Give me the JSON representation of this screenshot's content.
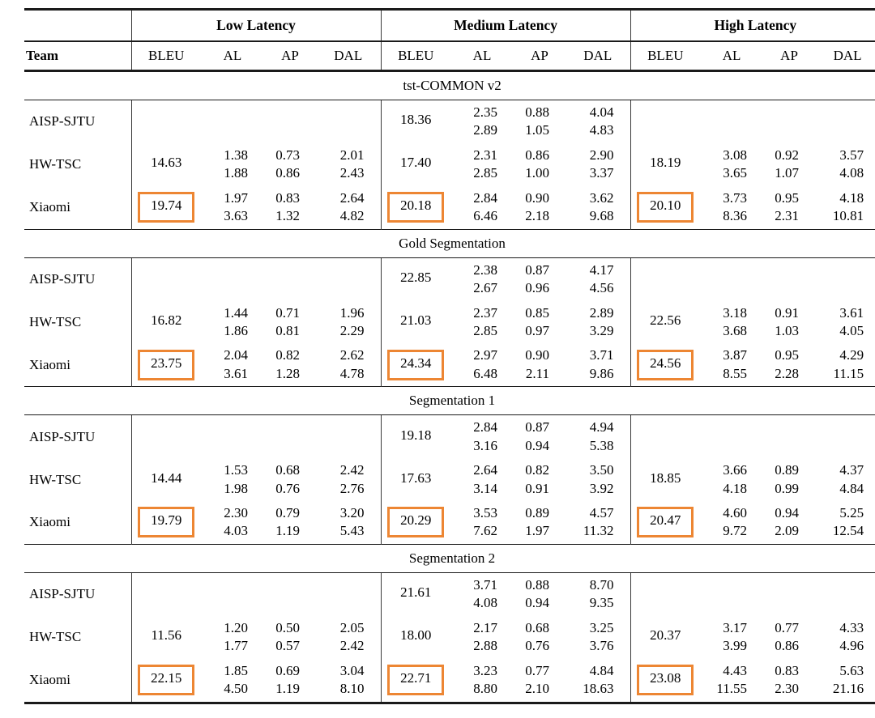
{
  "table": {
    "latency_groups": [
      {
        "label": "Low Latency"
      },
      {
        "label": "Medium Latency"
      },
      {
        "label": "High Latency"
      }
    ],
    "columns": {
      "team": "Team",
      "per_group": [
        "BLEU",
        "AL",
        "AP",
        "DAL"
      ]
    },
    "highlight_color": "#ED8633",
    "sections": [
      {
        "title": "tst-COMMON v2",
        "rows": [
          {
            "team": "AISP-SJTU",
            "low": {
              "bleu": "",
              "boxed": false,
              "al": [
                "",
                ""
              ],
              "ap": [
                "",
                ""
              ],
              "dal": [
                "",
                ""
              ]
            },
            "medium": {
              "bleu": "18.36",
              "boxed": false,
              "al": [
                "2.35",
                "2.89"
              ],
              "ap": [
                "0.88",
                "1.05"
              ],
              "dal": [
                "4.04",
                "4.83"
              ]
            },
            "high": {
              "bleu": "",
              "boxed": false,
              "al": [
                "",
                ""
              ],
              "ap": [
                "",
                ""
              ],
              "dal": [
                "",
                ""
              ]
            }
          },
          {
            "team": "HW-TSC",
            "low": {
              "bleu": "14.63",
              "boxed": false,
              "al": [
                "1.38",
                "1.88"
              ],
              "ap": [
                "0.73",
                "0.86"
              ],
              "dal": [
                "2.01",
                "2.43"
              ]
            },
            "medium": {
              "bleu": "17.40",
              "boxed": false,
              "al": [
                "2.31",
                "2.85"
              ],
              "ap": [
                "0.86",
                "1.00"
              ],
              "dal": [
                "2.90",
                "3.37"
              ]
            },
            "high": {
              "bleu": "18.19",
              "boxed": false,
              "al": [
                "3.08",
                "3.65"
              ],
              "ap": [
                "0.92",
                "1.07"
              ],
              "dal": [
                "3.57",
                "4.08"
              ]
            }
          },
          {
            "team": "Xiaomi",
            "low": {
              "bleu": "19.74",
              "boxed": true,
              "al": [
                "1.97",
                "3.63"
              ],
              "ap": [
                "0.83",
                "1.32"
              ],
              "dal": [
                "2.64",
                "4.82"
              ]
            },
            "medium": {
              "bleu": "20.18",
              "boxed": true,
              "al": [
                "2.84",
                "6.46"
              ],
              "ap": [
                "0.90",
                "2.18"
              ],
              "dal": [
                "3.62",
                "9.68"
              ]
            },
            "high": {
              "bleu": "20.10",
              "boxed": true,
              "al": [
                "3.73",
                "8.36"
              ],
              "ap": [
                "0.95",
                "2.31"
              ],
              "dal": [
                "4.18",
                "10.81"
              ]
            }
          }
        ]
      },
      {
        "title": "Gold Segmentation",
        "rows": [
          {
            "team": "AISP-SJTU",
            "low": {
              "bleu": "",
              "boxed": false,
              "al": [
                "",
                ""
              ],
              "ap": [
                "",
                ""
              ],
              "dal": [
                "",
                ""
              ]
            },
            "medium": {
              "bleu": "22.85",
              "boxed": false,
              "al": [
                "2.38",
                "2.67"
              ],
              "ap": [
                "0.87",
                "0.96"
              ],
              "dal": [
                "4.17",
                "4.56"
              ]
            },
            "high": {
              "bleu": "",
              "boxed": false,
              "al": [
                "",
                ""
              ],
              "ap": [
                "",
                ""
              ],
              "dal": [
                "",
                ""
              ]
            }
          },
          {
            "team": "HW-TSC",
            "low": {
              "bleu": "16.82",
              "boxed": false,
              "al": [
                "1.44",
                "1.86"
              ],
              "ap": [
                "0.71",
                "0.81"
              ],
              "dal": [
                "1.96",
                "2.29"
              ]
            },
            "medium": {
              "bleu": "21.03",
              "boxed": false,
              "al": [
                "2.37",
                "2.85"
              ],
              "ap": [
                "0.85",
                "0.97"
              ],
              "dal": [
                "2.89",
                "3.29"
              ]
            },
            "high": {
              "bleu": "22.56",
              "boxed": false,
              "al": [
                "3.18",
                "3.68"
              ],
              "ap": [
                "0.91",
                "1.03"
              ],
              "dal": [
                "3.61",
                "4.05"
              ]
            }
          },
          {
            "team": "Xiaomi",
            "low": {
              "bleu": "23.75",
              "boxed": true,
              "al": [
                "2.04",
                "3.61"
              ],
              "ap": [
                "0.82",
                "1.28"
              ],
              "dal": [
                "2.62",
                "4.78"
              ]
            },
            "medium": {
              "bleu": "24.34",
              "boxed": true,
              "al": [
                "2.97",
                "6.48"
              ],
              "ap": [
                "0.90",
                "2.11"
              ],
              "dal": [
                "3.71",
                "9.86"
              ]
            },
            "high": {
              "bleu": "24.56",
              "boxed": true,
              "al": [
                "3.87",
                "8.55"
              ],
              "ap": [
                "0.95",
                "2.28"
              ],
              "dal": [
                "4.29",
                "11.15"
              ]
            }
          }
        ]
      },
      {
        "title": "Segmentation 1",
        "rows": [
          {
            "team": "AISP-SJTU",
            "low": {
              "bleu": "",
              "boxed": false,
              "al": [
                "",
                ""
              ],
              "ap": [
                "",
                ""
              ],
              "dal": [
                "",
                ""
              ]
            },
            "medium": {
              "bleu": "19.18",
              "boxed": false,
              "al": [
                "2.84",
                "3.16"
              ],
              "ap": [
                "0.87",
                "0.94"
              ],
              "dal": [
                "4.94",
                "5.38"
              ]
            },
            "high": {
              "bleu": "",
              "boxed": false,
              "al": [
                "",
                ""
              ],
              "ap": [
                "",
                ""
              ],
              "dal": [
                "",
                ""
              ]
            }
          },
          {
            "team": "HW-TSC",
            "low": {
              "bleu": "14.44",
              "boxed": false,
              "al": [
                "1.53",
                "1.98"
              ],
              "ap": [
                "0.68",
                "0.76"
              ],
              "dal": [
                "2.42",
                "2.76"
              ]
            },
            "medium": {
              "bleu": "17.63",
              "boxed": false,
              "al": [
                "2.64",
                "3.14"
              ],
              "ap": [
                "0.82",
                "0.91"
              ],
              "dal": [
                "3.50",
                "3.92"
              ]
            },
            "high": {
              "bleu": "18.85",
              "boxed": false,
              "al": [
                "3.66",
                "4.18"
              ],
              "ap": [
                "0.89",
                "0.99"
              ],
              "dal": [
                "4.37",
                "4.84"
              ]
            }
          },
          {
            "team": "Xiaomi",
            "low": {
              "bleu": "19.79",
              "boxed": true,
              "al": [
                "2.30",
                "4.03"
              ],
              "ap": [
                "0.79",
                "1.19"
              ],
              "dal": [
                "3.20",
                "5.43"
              ]
            },
            "medium": {
              "bleu": "20.29",
              "boxed": true,
              "al": [
                "3.53",
                "7.62"
              ],
              "ap": [
                "0.89",
                "1.97"
              ],
              "dal": [
                "4.57",
                "11.32"
              ]
            },
            "high": {
              "bleu": "20.47",
              "boxed": true,
              "al": [
                "4.60",
                "9.72"
              ],
              "ap": [
                "0.94",
                "2.09"
              ],
              "dal": [
                "5.25",
                "12.54"
              ]
            }
          }
        ]
      },
      {
        "title": "Segmentation 2",
        "rows": [
          {
            "team": "AISP-SJTU",
            "low": {
              "bleu": "",
              "boxed": false,
              "al": [
                "",
                ""
              ],
              "ap": [
                "",
                ""
              ],
              "dal": [
                "",
                ""
              ]
            },
            "medium": {
              "bleu": "21.61",
              "boxed": false,
              "al": [
                "3.71",
                "4.08"
              ],
              "ap": [
                "0.88",
                "0.94"
              ],
              "dal": [
                "8.70",
                "9.35"
              ]
            },
            "high": {
              "bleu": "",
              "boxed": false,
              "al": [
                "",
                ""
              ],
              "ap": [
                "",
                ""
              ],
              "dal": [
                "",
                ""
              ]
            }
          },
          {
            "team": "HW-TSC",
            "low": {
              "bleu": "11.56",
              "boxed": false,
              "al": [
                "1.20",
                "1.77"
              ],
              "ap": [
                "0.50",
                "0.57"
              ],
              "dal": [
                "2.05",
                "2.42"
              ]
            },
            "medium": {
              "bleu": "18.00",
              "boxed": false,
              "al": [
                "2.17",
                "2.88"
              ],
              "ap": [
                "0.68",
                "0.76"
              ],
              "dal": [
                "3.25",
                "3.76"
              ]
            },
            "high": {
              "bleu": "20.37",
              "boxed": false,
              "al": [
                "3.17",
                "3.99"
              ],
              "ap": [
                "0.77",
                "0.86"
              ],
              "dal": [
                "4.33",
                "4.96"
              ]
            }
          },
          {
            "team": "Xiaomi",
            "low": {
              "bleu": "22.15",
              "boxed": true,
              "al": [
                "1.85",
                "4.50"
              ],
              "ap": [
                "0.69",
                "1.19"
              ],
              "dal": [
                "3.04",
                "8.10"
              ]
            },
            "medium": {
              "bleu": "22.71",
              "boxed": true,
              "al": [
                "3.23",
                "8.80"
              ],
              "ap": [
                "0.77",
                "2.10"
              ],
              "dal": [
                "4.84",
                "18.63"
              ]
            },
            "high": {
              "bleu": "23.08",
              "boxed": true,
              "al": [
                "4.43",
                "11.55"
              ],
              "ap": [
                "0.83",
                "2.30"
              ],
              "dal": [
                "5.63",
                "21.16"
              ]
            }
          }
        ]
      }
    ]
  }
}
